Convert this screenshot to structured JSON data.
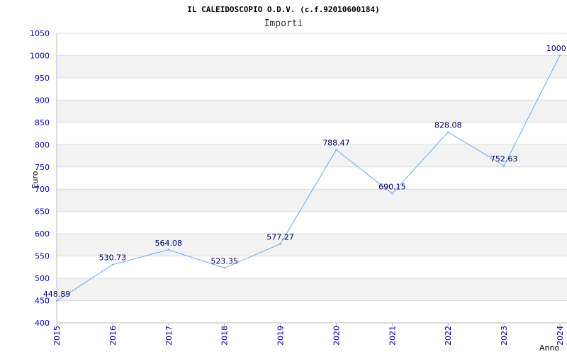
{
  "chart_data": {
    "type": "line",
    "title": "IL CALEIDOSCOPIO O.D.V. (c.f.92010600184)",
    "subtitle": "Importi",
    "xlabel": "Anno",
    "ylabel": "Euro",
    "x": [
      "2015",
      "2016",
      "2017",
      "2018",
      "2019",
      "2020",
      "2021",
      "2022",
      "2023",
      "2024"
    ],
    "series": [
      {
        "values": [
          448.89,
          530.73,
          564.08,
          523.35,
          577.27,
          788.47,
          690.15,
          828.08,
          752.63,
          1000.4
        ],
        "labels": [
          "448.89",
          "530.73",
          "564.08",
          "523.35",
          "577.27",
          "788.47",
          "690.15",
          "828.08",
          "752.63",
          "1000.4"
        ]
      }
    ],
    "ylim": [
      400,
      1050
    ],
    "yticks": [
      400,
      450,
      500,
      550,
      600,
      650,
      700,
      750,
      800,
      850,
      900,
      950,
      1000,
      1050
    ],
    "grid": true,
    "colors": {
      "line": "#66aaee",
      "band": "#f2f2f2",
      "gridline": "#dddddd",
      "tick_text": "#0000aa",
      "label_text": "#000066"
    }
  }
}
